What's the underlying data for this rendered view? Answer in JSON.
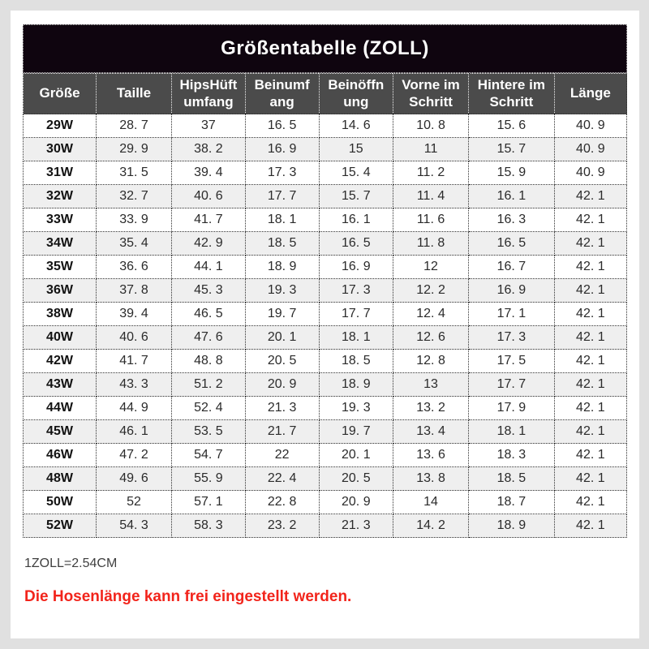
{
  "chart_data": {
    "type": "table",
    "title": "Größentabelle (ZOLL)",
    "columns": [
      "Größe",
      "Taille",
      "HipsHüft umfang",
      "Beinumf ang",
      "Beinöffn ung",
      "Vorne im Schritt",
      "Hintere im Schritt",
      "Länge"
    ],
    "rows": [
      [
        "29W",
        "28. 7",
        "37",
        "16. 5",
        "14. 6",
        "10. 8",
        "15. 6",
        "40. 9"
      ],
      [
        "30W",
        "29. 9",
        "38. 2",
        "16. 9",
        "15",
        "11",
        "15. 7",
        "40. 9"
      ],
      [
        "31W",
        "31. 5",
        "39. 4",
        "17. 3",
        "15. 4",
        "11. 2",
        "15. 9",
        "40. 9"
      ],
      [
        "32W",
        "32. 7",
        "40. 6",
        "17. 7",
        "15. 7",
        "11. 4",
        "16. 1",
        "42. 1"
      ],
      [
        "33W",
        "33. 9",
        "41. 7",
        "18. 1",
        "16. 1",
        "11. 6",
        "16. 3",
        "42. 1"
      ],
      [
        "34W",
        "35. 4",
        "42. 9",
        "18. 5",
        "16. 5",
        "11. 8",
        "16. 5",
        "42. 1"
      ],
      [
        "35W",
        "36. 6",
        "44. 1",
        "18. 9",
        "16. 9",
        "12",
        "16. 7",
        "42. 1"
      ],
      [
        "36W",
        "37. 8",
        "45. 3",
        "19. 3",
        "17. 3",
        "12. 2",
        "16. 9",
        "42. 1"
      ],
      [
        "38W",
        "39. 4",
        "46. 5",
        "19. 7",
        "17. 7",
        "12. 4",
        "17. 1",
        "42. 1"
      ],
      [
        "40W",
        "40. 6",
        "47. 6",
        "20. 1",
        "18. 1",
        "12. 6",
        "17. 3",
        "42. 1"
      ],
      [
        "42W",
        "41. 7",
        "48. 8",
        "20. 5",
        "18. 5",
        "12. 8",
        "17. 5",
        "42. 1"
      ],
      [
        "43W",
        "43. 3",
        "51. 2",
        "20. 9",
        "18. 9",
        "13",
        "17. 7",
        "42. 1"
      ],
      [
        "44W",
        "44. 9",
        "52. 4",
        "21. 3",
        "19. 3",
        "13. 2",
        "17. 9",
        "42. 1"
      ],
      [
        "45W",
        "46. 1",
        "53. 5",
        "21. 7",
        "19. 7",
        "13. 4",
        "18. 1",
        "42. 1"
      ],
      [
        "46W",
        "47. 2",
        "54. 7",
        "22",
        "20. 1",
        "13. 6",
        "18. 3",
        "42. 1"
      ],
      [
        "48W",
        "49. 6",
        "55. 9",
        "22. 4",
        "20. 5",
        "13. 8",
        "18. 5",
        "42. 1"
      ],
      [
        "50W",
        "52",
        "57. 1",
        "22. 8",
        "20. 9",
        "14",
        "18. 7",
        "42. 1"
      ],
      [
        "52W",
        "54. 3",
        "58. 3",
        "23. 2",
        "21. 3",
        "14. 2",
        "18. 9",
        "42. 1"
      ]
    ],
    "layout": {
      "grid": "dotted",
      "row_striping": true
    }
  },
  "notes": {
    "unit": "1ZOLL=2.54CM",
    "pants_length": "Die Hosenlänge kann frei eingestellt werden."
  },
  "colors": {
    "page_bg": "#e0e0e0",
    "card_bg": "#ffffff",
    "title_bar_bg": "#0f050f",
    "header_bg": "#4b4b4b",
    "row_alt_bg": "#efefef",
    "note_red": "#f2241b"
  }
}
